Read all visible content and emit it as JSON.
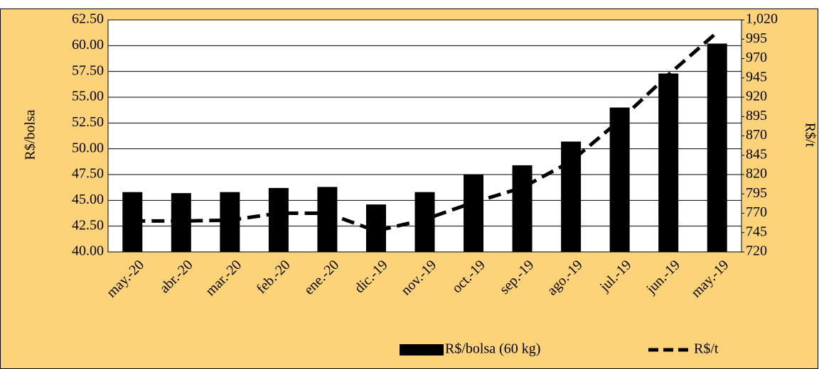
{
  "chart_data": {
    "type": "bar-line",
    "ylabel": "R$/bolsa",
    "y2label": "R$/t",
    "categories": [
      "may.-20",
      "abr.-20",
      "mar.-20",
      "feb.-20",
      "ene.-20",
      "dic.-19",
      "nov.-19",
      "oct.-19",
      "sep.-19",
      "ago.-19",
      "jul.-19",
      "jun.-19",
      "may.-19"
    ],
    "series": [
      {
        "name": "R$/bolsa (60 kg)",
        "type": "bar",
        "color": "#000000",
        "values": [
          45.8,
          45.7,
          45.8,
          46.2,
          46.3,
          44.6,
          45.8,
          47.5,
          48.4,
          50.7,
          54.0,
          57.3,
          60.2
        ]
      },
      {
        "name": "R$/t",
        "type": "line",
        "axis": "y2",
        "color": "#000000",
        "linestyle": "dashed",
        "values": [
          760,
          760,
          761,
          770,
          770,
          747,
          762,
          784,
          803,
          837,
          890,
          949,
          1004
        ]
      }
    ],
    "ylim": [
      40,
      62.5
    ],
    "yticks": [
      {
        "value": 40,
        "label": "40.00"
      },
      {
        "value": 42.5,
        "label": "42.50"
      },
      {
        "value": 45,
        "label": "45.00"
      },
      {
        "value": 47.5,
        "label": "47.50"
      },
      {
        "value": 50,
        "label": "50.00"
      },
      {
        "value": 52.5,
        "label": "52.50"
      },
      {
        "value": 55,
        "label": "55.00"
      },
      {
        "value": 57.5,
        "label": "57.50"
      },
      {
        "value": 60,
        "label": "60.00"
      },
      {
        "value": 62.5,
        "label": "62.50"
      }
    ],
    "y2lim": [
      720,
      1020
    ],
    "y2ticks": [
      720,
      745,
      770,
      795,
      820,
      845,
      870,
      895,
      920,
      945,
      970,
      995,
      {
        "value": 1020,
        "label": "1,020"
      }
    ],
    "grid": true,
    "legend": "bottom"
  }
}
